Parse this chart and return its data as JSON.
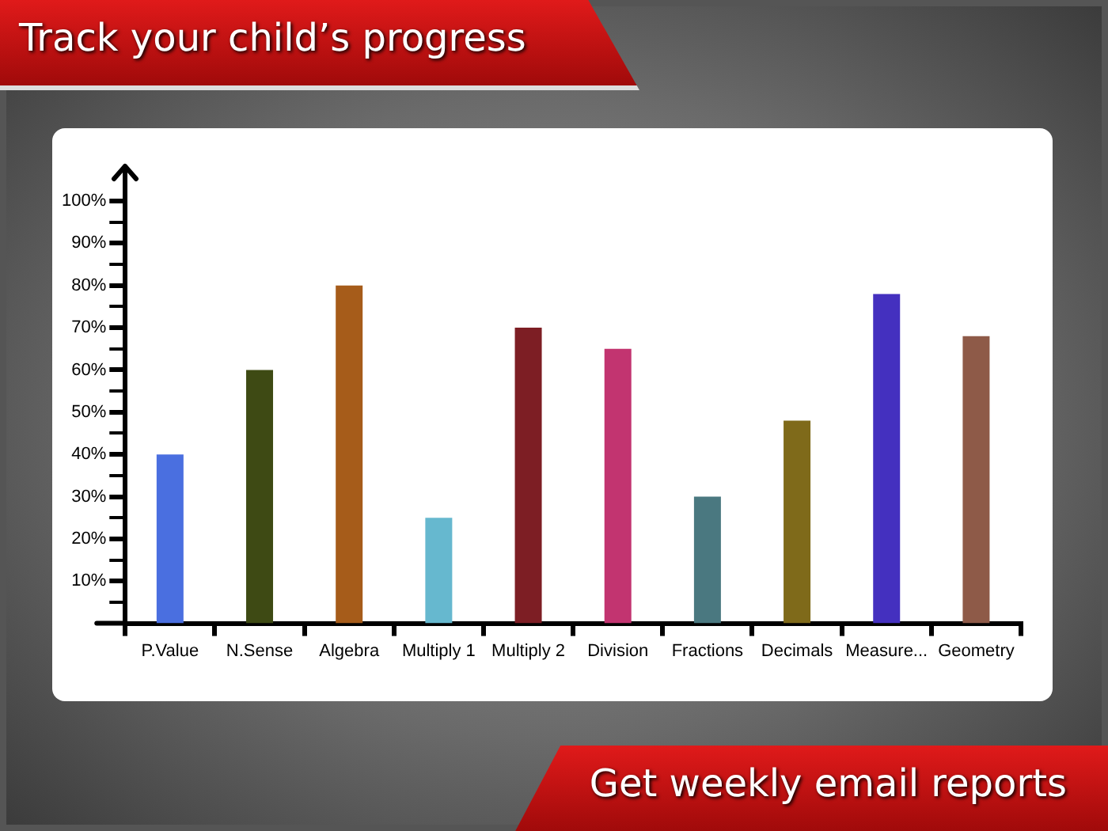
{
  "chart_data": {
    "type": "bar",
    "title": "Track your child’s progress",
    "annotations": [
      "Get weekly email reports"
    ],
    "categories": [
      "P.Value",
      "N.Sense",
      "Algebra",
      "Multiply 1",
      "Multiply 2",
      "Division",
      "Fractions",
      "Decimals",
      "Measure...",
      "Geometry"
    ],
    "values": [
      40,
      60,
      80,
      25,
      70,
      65,
      30,
      48,
      78,
      68
    ],
    "colors": [
      "#4a6fe0",
      "#3e4a14",
      "#a65c1a",
      "#66b8cf",
      "#7d1e24",
      "#c23470",
      "#4a7880",
      "#7f6a1a",
      "#4430bf",
      "#8e5a48"
    ],
    "ylim": [
      0,
      100
    ],
    "yticks": [
      {
        "value": 5,
        "label": null
      },
      {
        "value": 10,
        "label": "10%"
      },
      {
        "value": 15,
        "label": null
      },
      {
        "value": 20,
        "label": "20%"
      },
      {
        "value": 25,
        "label": null
      },
      {
        "value": 30,
        "label": "30%"
      },
      {
        "value": 35,
        "label": null
      },
      {
        "value": 40,
        "label": "40%"
      },
      {
        "value": 45,
        "label": null
      },
      {
        "value": 50,
        "label": "50%"
      },
      {
        "value": 55,
        "label": null
      },
      {
        "value": 60,
        "label": "60%"
      },
      {
        "value": 65,
        "label": null
      },
      {
        "value": 70,
        "label": "70%"
      },
      {
        "value": 75,
        "label": null
      },
      {
        "value": 80,
        "label": "80%"
      },
      {
        "value": 85,
        "label": null
      },
      {
        "value": 90,
        "label": "90%"
      },
      {
        "value": 95,
        "label": null
      },
      {
        "value": 100,
        "label": "100%"
      }
    ],
    "grid": false,
    "legend": false
  }
}
